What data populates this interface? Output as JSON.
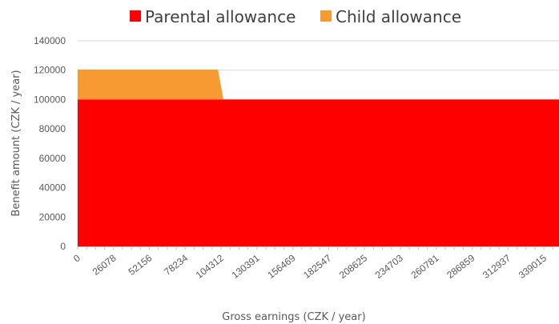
{
  "chart_data": {
    "type": "area",
    "stacked": true,
    "xlabel": "Gross earnings (CZK / year)",
    "ylabel": "Benefit amount (CZK / year)",
    "ylim": [
      0,
      140000
    ],
    "xlim": [
      0,
      350000
    ],
    "y_ticks": [
      0,
      20000,
      40000,
      60000,
      80000,
      100000,
      120000,
      140000
    ],
    "y_tick_labels": [
      "0",
      "20000",
      "40000",
      "60000",
      "80000",
      "100000",
      "120000",
      "140000"
    ],
    "x_ticks": [
      0,
      26078,
      52156,
      78234,
      104312,
      130391,
      156469,
      182547,
      208625,
      234703,
      260781,
      286859,
      312937,
      339015
    ],
    "x_tick_labels": [
      "0",
      "26078",
      "52156",
      "78234",
      "104312",
      "130391",
      "156469",
      "182547",
      "208625",
      "234703",
      "260781",
      "286859",
      "312937",
      "339015"
    ],
    "grid": "horizontal",
    "legend_position": "top",
    "series": [
      {
        "name": "Parental allowance",
        "color": "#ff0000",
        "points": [
          [
            0,
            100000
          ],
          [
            350000,
            100000
          ]
        ]
      },
      {
        "name": "Child allowance",
        "color": "#f79a32",
        "points": [
          [
            0,
            20400
          ],
          [
            102000,
            20400
          ],
          [
            106000,
            0
          ],
          [
            350000,
            0
          ]
        ]
      }
    ]
  }
}
